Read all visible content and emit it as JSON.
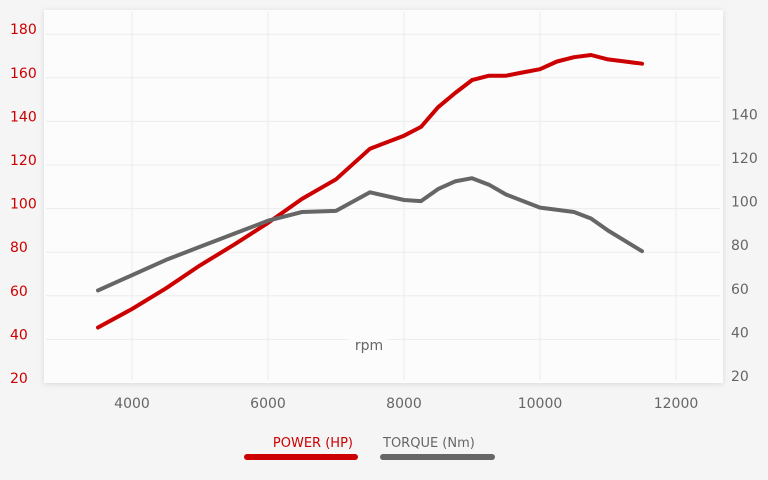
{
  "chart_data": {
    "type": "line",
    "title": "",
    "xlabel": "rpm",
    "xlim": [
      3000,
      12800
    ],
    "x_ticks": [
      4000,
      6000,
      8000,
      10000,
      12000
    ],
    "left_axis": {
      "ylim": [
        20,
        185
      ],
      "ticks": [
        20,
        40,
        60,
        80,
        100,
        120,
        140,
        160,
        180
      ],
      "color": "#cc0000"
    },
    "right_axis": {
      "ylim": [
        20,
        185
      ],
      "ticks": [
        20,
        40,
        60,
        80,
        100,
        120,
        140
      ],
      "color": "#666666"
    },
    "grid": true,
    "legend_position": "bottom",
    "series": [
      {
        "name": "POWER (HP)",
        "axis": "left",
        "color": "#cc0000",
        "x": [
          3500,
          4000,
          4500,
          5000,
          5500,
          6000,
          6500,
          7000,
          7500,
          8000,
          8250,
          8500,
          8750,
          9000,
          9250,
          9500,
          9750,
          10000,
          10250,
          10500,
          10750,
          11000,
          11250,
          11500
        ],
        "y": [
          45,
          53.5,
          63,
          73.5,
          83,
          93,
          104,
          113,
          127,
          133,
          137,
          146,
          152.5,
          158.5,
          160.5,
          160.5,
          162,
          163.5,
          167,
          169,
          170,
          168,
          167,
          166
        ]
      },
      {
        "name": "TORQUE (Nm)",
        "axis": "right",
        "color": "#666666",
        "x": [
          3500,
          4000,
          4500,
          5000,
          5500,
          6000,
          6500,
          7000,
          7500,
          8000,
          8250,
          8500,
          8750,
          9000,
          9250,
          9500,
          10000,
          10500,
          10750,
          11000,
          11500
        ],
        "y": [
          62,
          69,
          76,
          82,
          88,
          94,
          98,
          98.5,
          107,
          103.5,
          103,
          108.5,
          112,
          113.5,
          110.5,
          106,
          100,
          98,
          95,
          89.5,
          80
        ]
      }
    ]
  }
}
